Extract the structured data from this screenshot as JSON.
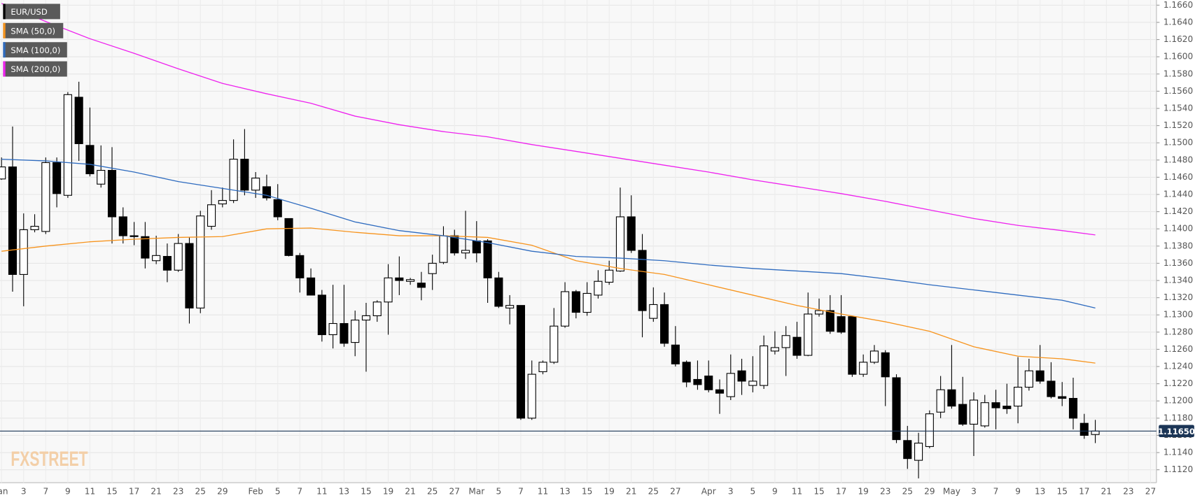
{
  "chart_data": {
    "type": "candlestick",
    "categories": [
      "Jan",
      null,
      "3",
      null,
      "7",
      null,
      "9",
      null,
      "11",
      null,
      "15",
      null,
      "17",
      null,
      "21",
      null,
      "23",
      null,
      "25",
      null,
      "29",
      null,
      null,
      "Feb",
      null,
      "5",
      null,
      "7",
      null,
      "11",
      null,
      "13",
      null,
      "15",
      null,
      "19",
      null,
      "21",
      null,
      "25",
      null,
      "27",
      null,
      "Mar",
      null,
      "5",
      null,
      "7",
      null,
      "11",
      null,
      "13",
      null,
      "15",
      null,
      "19",
      null,
      "21",
      null,
      "25",
      null,
      "27",
      null,
      null,
      "Apr",
      null,
      "3",
      null,
      "5",
      null,
      "9",
      null,
      "11",
      null,
      "15",
      null,
      "17",
      null,
      "19",
      null,
      "23",
      null,
      "25",
      null,
      "29",
      null,
      "May",
      null,
      "3",
      null,
      "7",
      null,
      "9",
      null,
      "13",
      null,
      "15",
      null,
      "17",
      null,
      "21",
      null,
      "23",
      null,
      "27"
    ],
    "candles": {
      "name": "EUR/USD",
      "color": "#000000",
      "up_color": "#ffffff",
      "down_color": "#000000",
      "open": [
        1.1458,
        1.1472,
        1.1347,
        1.1399,
        1.1397,
        1.1477,
        1.1439,
        1.1553,
        1.1497,
        1.1452,
        1.1468,
        1.1414,
        1.1392,
        1.1391,
        1.1363,
        1.1368,
        1.1352,
        1.1383,
        1.1308,
        1.1403,
        1.1429,
        1.1433,
        1.1481,
        1.1445,
        1.1449,
        1.1434,
        1.1412,
        1.1369,
        1.1343,
        1.1323,
        1.1277,
        1.129,
        1.1268,
        1.1294,
        1.1299,
        1.1315,
        1.1343,
        1.1339,
        1.1337,
        1.1348,
        1.1361,
        1.1392,
        1.1372,
        1.1386,
        1.1386,
        1.1343,
        1.1308,
        1.1311,
        1.118,
        1.1234,
        1.1245,
        1.1287,
        1.1327,
        1.1303,
        1.1323,
        1.1338,
        1.1351,
        1.1414,
        1.1375,
        1.1296,
        1.1312,
        1.1265,
        1.1245,
        1.1225,
        1.1229,
        1.1213,
        1.1205,
        1.1235,
        1.1218,
        1.1218,
        1.1258,
        1.1262,
        1.1274,
        1.1253,
        1.1301,
        1.1305,
        1.1298,
        1.1298,
        1.1231,
        1.1245,
        1.1256,
        1.1227,
        1.1154,
        1.1131,
        1.1147,
        1.1187,
        1.1213,
        1.1196,
        1.1173,
        1.1171,
        1.1198,
        1.1194,
        1.1194,
        1.1216,
        1.1235,
        1.1223,
        1.1205,
        1.1203,
        1.1174,
        1.1161,
        null,
        null,
        null,
        null,
        null
      ],
      "high": [
        1.1483,
        1.1519,
        1.1418,
        1.1417,
        1.1483,
        1.1483,
        1.1559,
        1.1571,
        1.1541,
        1.1497,
        1.1495,
        1.1425,
        1.1408,
        1.1408,
        1.1392,
        1.1383,
        1.1394,
        1.139,
        1.1421,
        1.1445,
        1.1448,
        1.1504,
        1.1516,
        1.1466,
        1.1463,
        1.1452,
        1.1412,
        1.1372,
        1.1354,
        1.1329,
        1.1335,
        1.1335,
        1.1305,
        1.1314,
        1.1317,
        1.1359,
        1.1368,
        1.1343,
        1.135,
        1.137,
        1.1403,
        1.1399,
        1.1421,
        1.1409,
        1.1388,
        1.135,
        1.1323,
        1.1311,
        1.1247,
        1.1247,
        1.1308,
        1.1338,
        1.1329,
        1.1338,
        1.1352,
        1.1363,
        1.1448,
        1.1439,
        1.1394,
        1.1332,
        1.1326,
        1.1287,
        1.1247,
        1.1247,
        1.1247,
        1.1225,
        1.1254,
        1.1249,
        1.1252,
        1.1276,
        1.1281,
        1.1287,
        1.1292,
        1.1326,
        1.1319,
        1.1323,
        1.1323,
        1.1299,
        1.1254,
        1.1265,
        1.1259,
        1.1231,
        1.1171,
        1.1163,
        1.1189,
        1.1229,
        1.1265,
        1.1228,
        1.121,
        1.1207,
        1.1213,
        1.122,
        1.1251,
        1.1249,
        1.1265,
        1.1245,
        1.1222,
        1.1227,
        1.1185,
        1.1178,
        null,
        null,
        null,
        null,
        null
      ],
      "low": [
        1.1457,
        1.1327,
        1.131,
        1.1396,
        1.1394,
        1.1425,
        1.1436,
        1.1479,
        1.1461,
        1.1448,
        1.1383,
        1.1383,
        1.1381,
        1.1354,
        1.1359,
        1.1338,
        1.135,
        1.129,
        1.1302,
        1.1399,
        1.1425,
        1.143,
        1.1439,
        1.1436,
        1.1433,
        1.141,
        1.1368,
        1.1326,
        1.1323,
        1.1269,
        1.1261,
        1.1263,
        1.1252,
        1.1234,
        1.1292,
        1.1277,
        1.1323,
        1.1335,
        1.1317,
        1.1329,
        1.1359,
        1.1369,
        1.1365,
        1.1361,
        1.1314,
        1.1308,
        1.1289,
        1.1178,
        1.1178,
        1.1231,
        1.1243,
        1.1285,
        1.1296,
        1.1299,
        1.1319,
        1.1335,
        1.135,
        1.1372,
        1.1274,
        1.1292,
        1.1263,
        1.124,
        1.1216,
        1.1213,
        1.121,
        1.1185,
        1.1201,
        1.1207,
        1.121,
        1.1214,
        1.1254,
        1.1229,
        1.1249,
        1.1252,
        1.1298,
        1.1278,
        1.1278,
        1.1228,
        1.1228,
        1.1243,
        1.1194,
        1.1151,
        1.1121,
        1.111,
        1.1145,
        1.118,
        1.1191,
        1.1171,
        1.1136,
        1.1169,
        1.1167,
        1.1185,
        1.1174,
        1.1212,
        1.122,
        1.1203,
        1.1194,
        1.1167,
        1.1156,
        1.1151,
        null,
        null,
        null,
        null,
        null
      ],
      "close": [
        1.1472,
        1.1347,
        1.1399,
        1.1403,
        1.1477,
        1.1441,
        1.1556,
        1.1499,
        1.1464,
        1.1468,
        1.1414,
        1.1392,
        1.1391,
        1.1366,
        1.1369,
        1.1352,
        1.1383,
        1.1308,
        1.1415,
        1.1428,
        1.1433,
        1.1481,
        1.1445,
        1.1459,
        1.1436,
        1.1414,
        1.1369,
        1.1343,
        1.1323,
        1.1277,
        1.129,
        1.1267,
        1.1294,
        1.1299,
        1.1315,
        1.1343,
        1.134,
        1.1341,
        1.1332,
        1.136,
        1.1392,
        1.1372,
        1.1375,
        1.1372,
        1.1343,
        1.131,
        1.1311,
        1.118,
        1.1231,
        1.1245,
        1.1287,
        1.1327,
        1.1303,
        1.1325,
        1.1339,
        1.1352,
        1.1414,
        1.1375,
        1.1305,
        1.1312,
        1.1267,
        1.1243,
        1.1222,
        1.1219,
        1.1213,
        1.1209,
        1.1232,
        1.1223,
        1.1223,
        1.1264,
        1.1262,
        1.1276,
        1.1253,
        1.1301,
        1.1305,
        1.1281,
        1.128,
        1.1231,
        1.1245,
        1.1258,
        1.1228,
        1.1155,
        1.1133,
        1.1151,
        1.1185,
        1.1213,
        1.1194,
        1.1173,
        1.1201,
        1.1198,
        1.1192,
        1.1191,
        1.1216,
        1.1235,
        1.1223,
        1.1205,
        1.1203,
        1.118,
        1.116,
        1.1165,
        null,
        null,
        null,
        null,
        null
      ]
    },
    "series": [
      {
        "name": "SMA (50,0)",
        "color": "#f7941d",
        "x": [
          0,
          4,
          8,
          12,
          16,
          20,
          24,
          28,
          32,
          36,
          40,
          44,
          48,
          52,
          56,
          60,
          64,
          68,
          72,
          76,
          80,
          84,
          88,
          92,
          96,
          99
        ],
        "values": [
          1.1374,
          1.138,
          1.1385,
          1.1388,
          1.139,
          1.1391,
          1.14,
          1.1401,
          1.1396,
          1.1392,
          1.1392,
          1.139,
          1.1381,
          1.1363,
          1.1354,
          1.1347,
          1.1335,
          1.1323,
          1.1311,
          1.1301,
          1.1292,
          1.1281,
          1.1263,
          1.1252,
          1.1249,
          1.1244
        ]
      },
      {
        "name": "SMA (100,0)",
        "color": "#2e6bbf",
        "x": [
          0,
          4,
          8,
          12,
          16,
          20,
          24,
          28,
          32,
          36,
          40,
          44,
          48,
          52,
          56,
          60,
          64,
          68,
          72,
          76,
          80,
          84,
          88,
          92,
          96,
          99
        ],
        "values": [
          1.1481,
          1.1479,
          1.1475,
          1.1466,
          1.1455,
          1.1447,
          1.1439,
          1.1424,
          1.1408,
          1.1398,
          1.1392,
          1.1384,
          1.1374,
          1.1368,
          1.1366,
          1.1363,
          1.1358,
          1.1354,
          1.1351,
          1.1348,
          1.1342,
          1.1335,
          1.1329,
          1.1323,
          1.1317,
          1.1308
        ]
      },
      {
        "name": "SMA (200,0)",
        "color": "#ee22ee",
        "x": [
          0,
          4,
          8,
          12,
          16,
          20,
          24,
          28,
          32,
          36,
          40,
          44,
          48,
          52,
          56,
          60,
          64,
          68,
          72,
          76,
          80,
          84,
          88,
          92,
          96,
          99
        ],
        "values": [
          1.1662,
          1.1641,
          1.1621,
          1.1604,
          1.1586,
          1.1569,
          1.1557,
          1.1546,
          1.1531,
          1.1521,
          1.1513,
          1.1507,
          1.1498,
          1.149,
          1.1482,
          1.1474,
          1.1466,
          1.1457,
          1.1449,
          1.1441,
          1.1432,
          1.1422,
          1.1412,
          1.1404,
          1.1398,
          1.1393
        ]
      }
    ],
    "last_price": {
      "value": 1.1165,
      "label": "1.11650"
    },
    "last_color": "#1b3556",
    "watermark": "FXSTREET",
    "ylim": [
      1.1105,
      1.1666
    ],
    "yticks": [
      {
        "value": 1.112,
        "label": "1.1120"
      },
      {
        "value": 1.114,
        "label": "1.1140"
      },
      {
        "value": 1.116,
        "label": "1.1160"
      },
      {
        "value": 1.118,
        "label": "1.1180"
      },
      {
        "value": 1.12,
        "label": "1.1200"
      },
      {
        "value": 1.122,
        "label": "1.1220"
      },
      {
        "value": 1.124,
        "label": "1.1240"
      },
      {
        "value": 1.126,
        "label": "1.1260"
      },
      {
        "value": 1.128,
        "label": "1.1280"
      },
      {
        "value": 1.13,
        "label": "1.1300"
      },
      {
        "value": 1.132,
        "label": "1.1320"
      },
      {
        "value": 1.134,
        "label": "1.1340"
      },
      {
        "value": 1.136,
        "label": "1.1360"
      },
      {
        "value": 1.138,
        "label": "1.1380"
      },
      {
        "value": 1.14,
        "label": "1.1400"
      },
      {
        "value": 1.142,
        "label": "1.1420"
      },
      {
        "value": 1.144,
        "label": "1.1440"
      },
      {
        "value": 1.146,
        "label": "1.1460"
      },
      {
        "value": 1.148,
        "label": "1.1480"
      },
      {
        "value": 1.15,
        "label": "1.1500"
      },
      {
        "value": 1.152,
        "label": "1.1520"
      },
      {
        "value": 1.154,
        "label": "1.1540"
      },
      {
        "value": 1.156,
        "label": "1.1560"
      },
      {
        "value": 1.158,
        "label": "1.1580"
      },
      {
        "value": 1.16,
        "label": "1.1600"
      },
      {
        "value": 1.162,
        "label": "1.1620"
      },
      {
        "value": 1.164,
        "label": "1.1640"
      },
      {
        "value": 1.166,
        "label": "1.1660"
      }
    ],
    "grid": true
  }
}
